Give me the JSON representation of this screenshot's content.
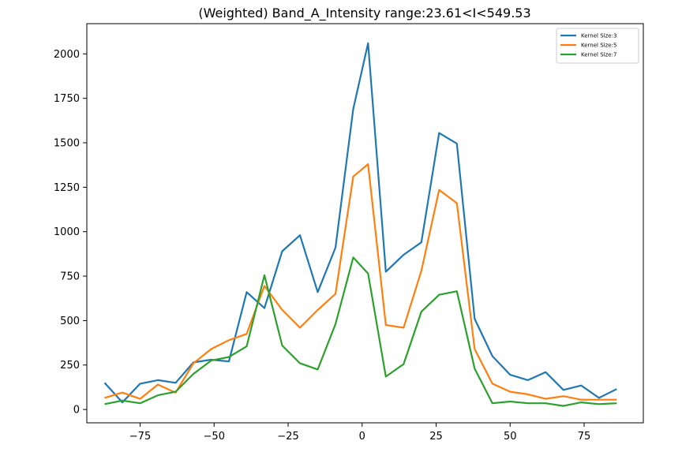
{
  "chart_data": {
    "type": "line",
    "title": "(Weighted) Band_A_Intensity range:23.61<I<549.53",
    "xlabel": "",
    "ylabel": "",
    "xlim": [
      -93,
      95
    ],
    "ylim": [
      -75,
      2170
    ],
    "x_ticks": [
      -75,
      -50,
      -25,
      0,
      25,
      50,
      75
    ],
    "x_tick_labels": [
      "−75",
      "−50",
      "−25",
      "0",
      "25",
      "50",
      "75"
    ],
    "y_ticks": [
      0,
      250,
      500,
      750,
      1000,
      1250,
      1500,
      1750,
      2000
    ],
    "y_tick_labels": [
      "0",
      "250",
      "500",
      "750",
      "1000",
      "1250",
      "1500",
      "1750",
      "2000"
    ],
    "grid": false,
    "legend_position": "top-right",
    "x": [
      -87,
      -81,
      -75,
      -69,
      -63,
      -57,
      -51,
      -45,
      -39,
      -33,
      -27,
      -21,
      -15,
      -9,
      -3,
      2,
      8,
      14,
      20,
      26,
      32,
      38,
      44,
      50,
      56,
      62,
      68,
      74,
      80,
      86
    ],
    "series": [
      {
        "name": "Kernel Size:3",
        "color": "#1f77b4",
        "values": [
          150,
          40,
          145,
          165,
          150,
          265,
          280,
          270,
          660,
          570,
          890,
          980,
          660,
          910,
          1690,
          2060,
          775,
          870,
          940,
          1555,
          1495,
          510,
          300,
          195,
          165,
          210,
          110,
          135,
          65,
          115
        ]
      },
      {
        "name": "Kernel Size:5",
        "color": "#ff7f0e",
        "values": [
          65,
          95,
          60,
          140,
          95,
          260,
          340,
          390,
          425,
          695,
          560,
          460,
          560,
          650,
          1310,
          1380,
          475,
          460,
          780,
          1235,
          1160,
          340,
          145,
          100,
          85,
          60,
          75,
          55,
          55,
          55
        ]
      },
      {
        "name": "Kernel Size:7",
        "color": "#2ca02c",
        "values": [
          30,
          50,
          35,
          80,
          100,
          200,
          275,
          295,
          355,
          755,
          360,
          260,
          225,
          480,
          855,
          765,
          185,
          255,
          550,
          645,
          665,
          230,
          35,
          45,
          35,
          35,
          20,
          40,
          30,
          35
        ]
      }
    ]
  }
}
